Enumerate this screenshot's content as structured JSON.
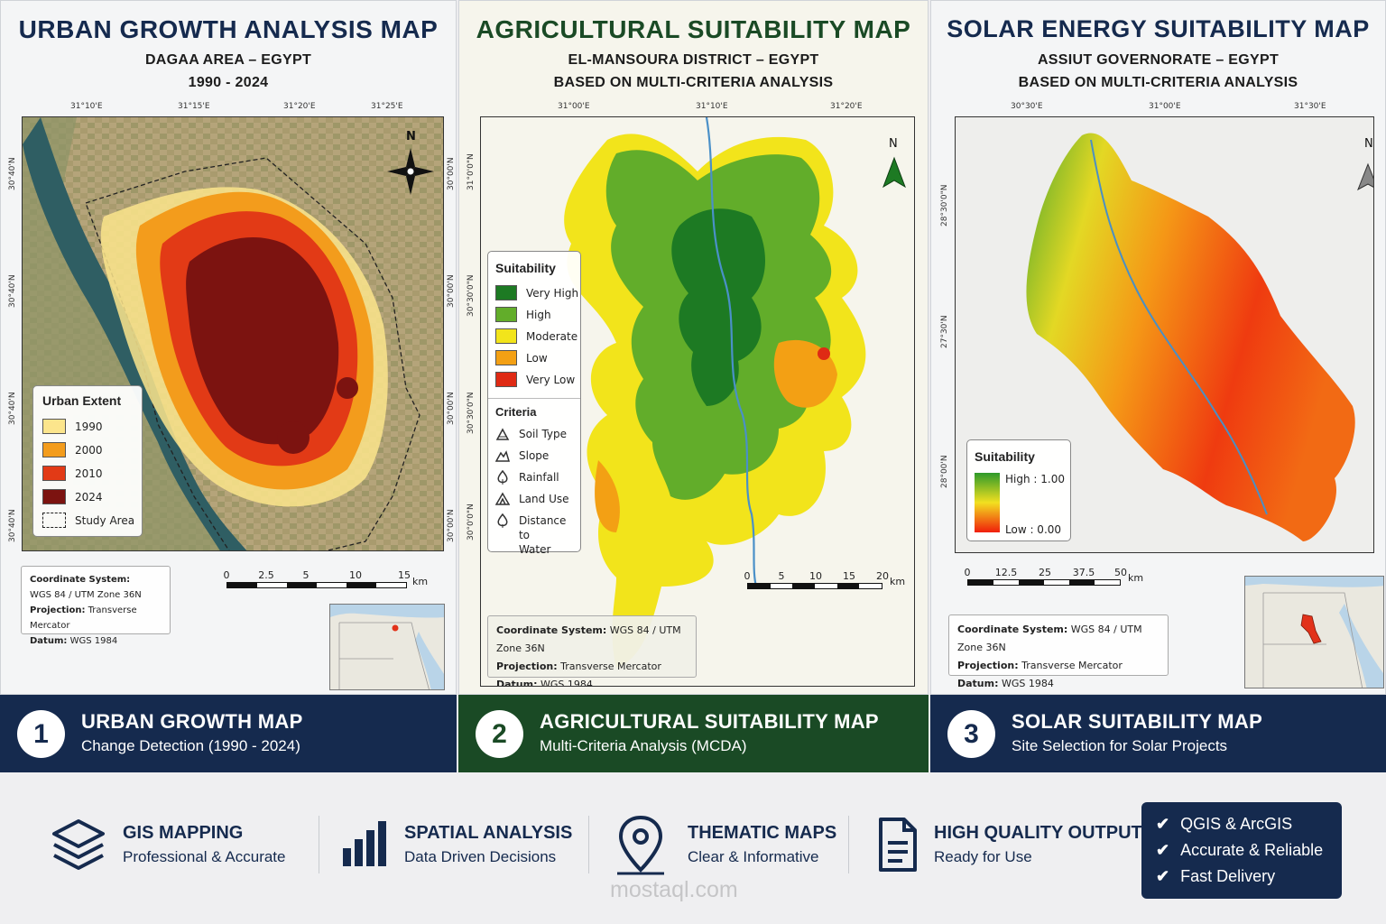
{
  "panel1": {
    "title": "URBAN GROWTH ANALYSIS MAP",
    "subtitle": "DAGAA AREA – EGYPT",
    "period": "1990 - 2024",
    "top_ticks": [
      "31°10'E",
      "31°15'E",
      "31°20'E",
      "31°25'E"
    ],
    "left_ticks": [
      "30°40'N",
      "30°40'N",
      "30°40'N",
      "30°40'N"
    ],
    "right_ticks": [
      "30°00'N",
      "30°00'N",
      "30°00'N",
      "30°00'N"
    ],
    "north": "N",
    "legend": {
      "title": "Urban Extent",
      "items": [
        {
          "label": "1990",
          "color": "#fce58c"
        },
        {
          "label": "2000",
          "color": "#f39c1c"
        },
        {
          "label": "2010",
          "color": "#e23a16"
        },
        {
          "label": "2024",
          "color": "#7c1310"
        },
        {
          "label": "Study Area",
          "color": "none"
        }
      ]
    },
    "info": {
      "cs_label": "Coordinate System:",
      "cs_value": "WGS 84 / UTM Zone 36N",
      "proj_label": "Projection:",
      "proj_value": "Transverse Mercator",
      "datum_label": "Datum:",
      "datum_value": "WGS 1984"
    },
    "scale": {
      "labels": [
        "0",
        "2.5",
        "5",
        "10",
        "15"
      ],
      "unit": "km"
    }
  },
  "panel2": {
    "title": "AGRICULTURAL SUITABILITY MAP",
    "subtitle": "EL-MANSOURA DISTRICT – EGYPT",
    "method": "BASED ON MULTI-CRITERIA ANALYSIS",
    "top_ticks": [
      "31°00'E",
      "31°10'E",
      "31°20'E"
    ],
    "left_ticks": [
      "31°0'0\"N",
      "30°30'0\"N",
      "30°30'0\"N",
      "30°0'0\"N"
    ],
    "north": "N",
    "legend": {
      "title": "Suitability",
      "items": [
        {
          "label": "Very High",
          "color": "#1d7a23"
        },
        {
          "label": "High",
          "color": "#62ad2a"
        },
        {
          "label": "Moderate",
          "color": "#f2e41b"
        },
        {
          "label": "Low",
          "color": "#f3a014"
        },
        {
          "label": "Very Low",
          "color": "#df2a14"
        }
      ],
      "criteria_title": "Criteria",
      "criteria": [
        {
          "label": "Soil Type",
          "icon": "soil-icon"
        },
        {
          "label": "Slope",
          "icon": "slope-icon"
        },
        {
          "label": "Rainfall",
          "icon": "rainfall-icon"
        },
        {
          "label": "Land Use",
          "icon": "land-use-icon"
        },
        {
          "label": "Distance to",
          "label2": "Water",
          "icon": "water-icon"
        }
      ]
    },
    "info": {
      "cs_label": "Coordinate System:",
      "cs_value": "WGS 84 / UTM Zone 36N",
      "proj_label": "Projection:",
      "proj_value": "Transverse Mercator",
      "datum_label": "Datum:",
      "datum_value": "WGS 1984"
    },
    "scale": {
      "labels": [
        "0",
        "5",
        "10",
        "15",
        "20"
      ],
      "unit": "km"
    }
  },
  "panel3": {
    "title": "SOLAR ENERGY SUITABILITY MAP",
    "subtitle": "ASSIUT GOVERNORATE – EGYPT",
    "method": "BASED ON MULTI-CRITERIA ANALYSIS",
    "top_ticks": [
      "30°30'E",
      "31°00'E",
      "31°30'E"
    ],
    "left_ticks": [
      "28°30'0\"N",
      "27°30'N",
      "28°00'N"
    ],
    "north": "N",
    "legend": {
      "title": "Suitability",
      "high": "High : 1.00",
      "low": "Low : 0.00",
      "color_high": "#2e9a2a",
      "color_mid": "#f2e020",
      "color_low": "#f01e0a"
    },
    "info": {
      "cs_label": "Coordinate System:",
      "cs_value": "WGS 84 / UTM Zone 36N",
      "proj_label": "Projection:",
      "proj_value": "Transverse Mercator",
      "datum_label": "Datum:",
      "datum_value": "WGS 1984"
    },
    "scale": {
      "labels": [
        "0",
        "12.5",
        "25",
        "37.5",
        "50"
      ],
      "unit": "km"
    }
  },
  "bands": [
    {
      "num": "1",
      "title": "URBAN GROWTH MAP",
      "sub": "Change Detection (1990 - 2024)"
    },
    {
      "num": "2",
      "title": "AGRICULTURAL SUITABILITY MAP",
      "sub": "Multi-Criteria Analysis (MCDA)"
    },
    {
      "num": "3",
      "title": "SOLAR SUITABILITY MAP",
      "sub": "Site Selection for Solar Projects"
    }
  ],
  "features": [
    {
      "title": "GIS MAPPING",
      "sub": "Professional & Accurate",
      "icon": "layers-icon"
    },
    {
      "title": "SPATIAL ANALYSIS",
      "sub": "Data Driven Decisions",
      "icon": "bar-chart-icon"
    },
    {
      "title": "THEMATIC MAPS",
      "sub": "Clear & Informative",
      "icon": "map-pin-icon"
    },
    {
      "title": "HIGH QUALITY OUTPUT",
      "sub": "Ready for Use",
      "icon": "document-icon"
    }
  ],
  "checks": [
    "QGIS & ArcGIS",
    "Accurate & Reliable",
    "Fast Delivery"
  ],
  "watermark": "mostaql.com",
  "colors": {
    "navy": "#152a4e",
    "green_dark": "#1a4a25"
  }
}
